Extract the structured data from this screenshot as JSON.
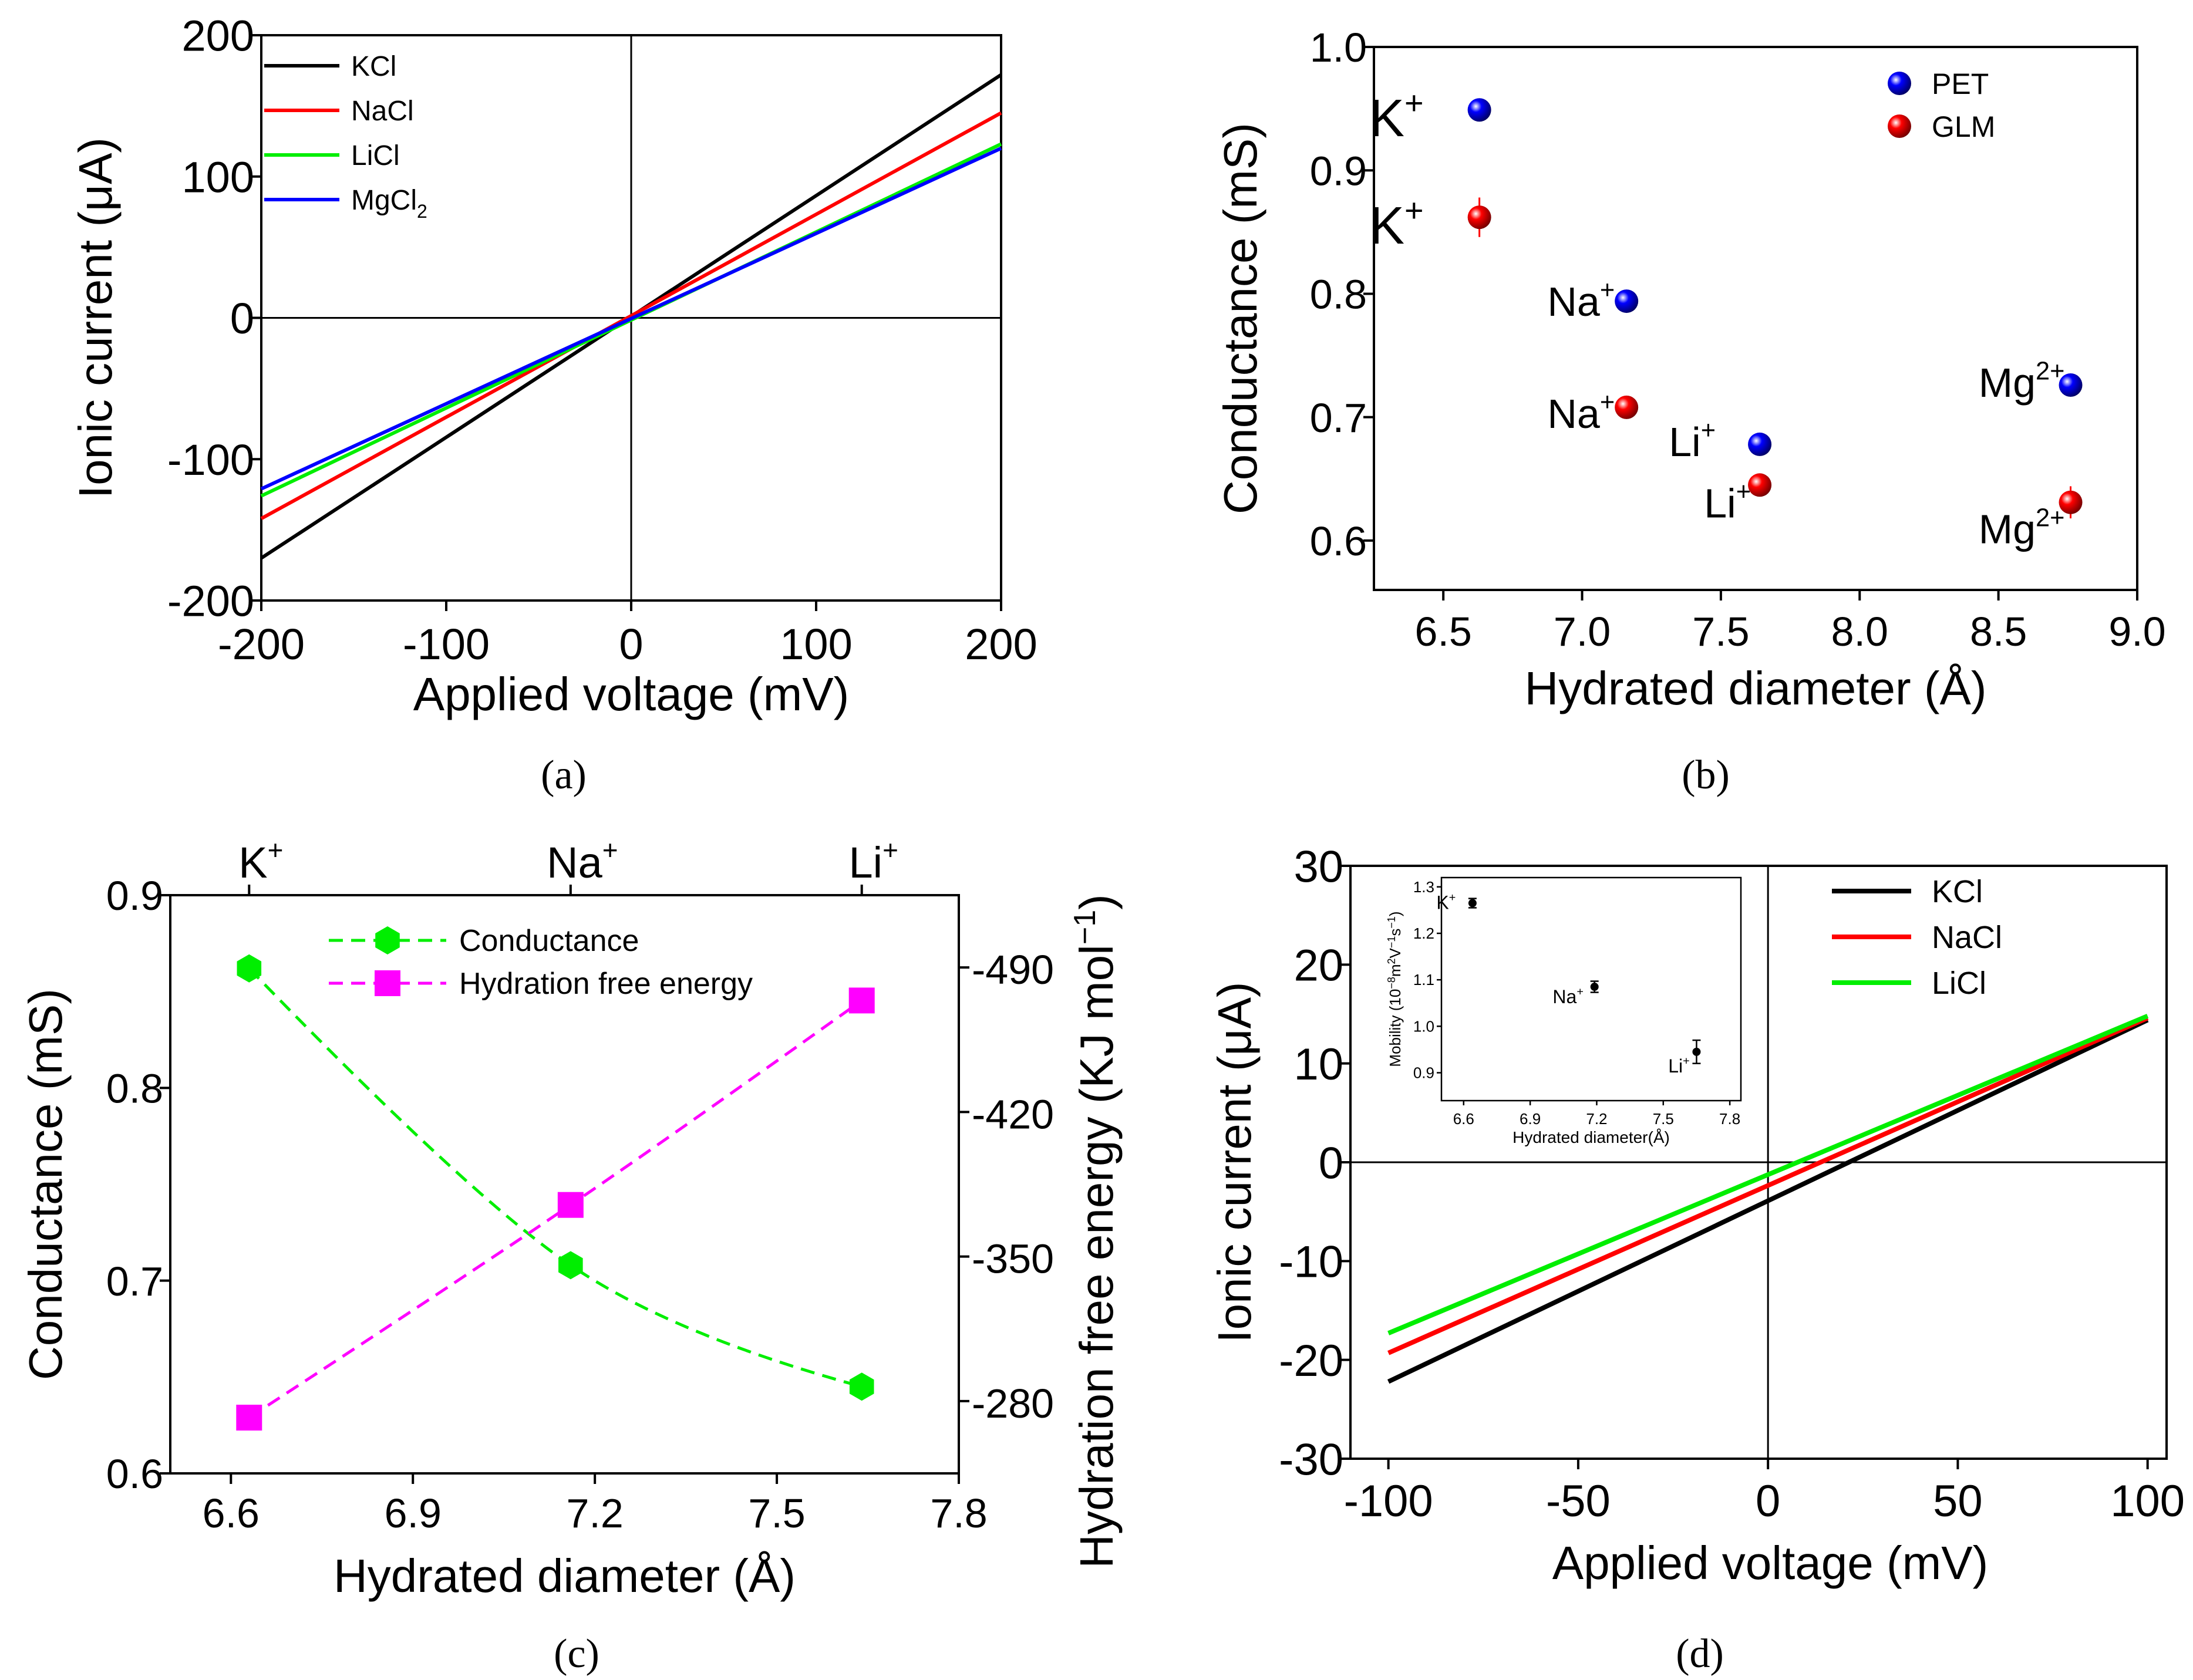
{
  "panels": {
    "a": {
      "caption": "(a)"
    },
    "b": {
      "caption": "(b)"
    },
    "c": {
      "caption": "(c)"
    },
    "d": {
      "caption": "(d)"
    }
  },
  "chart_data": [
    {
      "id": "a",
      "type": "line",
      "xlabel": "Applied voltage (mV)",
      "ylabel": "Ionic current (μA)",
      "xlim": [
        -200,
        200
      ],
      "ylim": [
        -200,
        200
      ],
      "xticks": [
        -200,
        -100,
        0,
        100,
        200
      ],
      "yticks": [
        -200,
        -100,
        0,
        100,
        200
      ],
      "zero_lines": true,
      "legend": "top-left",
      "series": [
        {
          "name": "KCl",
          "color": "#000000",
          "x": [
            -200,
            200
          ],
          "y": [
            -170,
            172
          ]
        },
        {
          "name": "NaCl",
          "color": "#ff0000",
          "x": [
            -200,
            200
          ],
          "y": [
            -142,
            145
          ]
        },
        {
          "name": "LiCl",
          "color": "#00ee00",
          "x": [
            -200,
            200
          ],
          "y": [
            -126,
            123
          ]
        },
        {
          "name": "MgCl2",
          "color": "#0000ff",
          "x": [
            -200,
            200
          ],
          "y": [
            -121,
            120
          ]
        }
      ]
    },
    {
      "id": "b",
      "type": "scatter",
      "xlabel": "Hydrated diameter (Å)",
      "ylabel": "Conductance (mS)",
      "xlim": [
        6.25,
        9.0
      ],
      "ylim": [
        0.56,
        1.0
      ],
      "xticks": [
        6.5,
        7.0,
        7.5,
        8.0,
        8.5,
        9.0
      ],
      "yticks": [
        0.6,
        0.7,
        0.8,
        0.9,
        1.0
      ],
      "legend": "top-right",
      "series": [
        {
          "name": "PET",
          "color": "#0000ff",
          "points": [
            {
              "label": "K",
              "sup": "+",
              "x": 6.63,
              "y": 0.949,
              "err": 0.004
            },
            {
              "label": "Na",
              "sup": "+",
              "x": 7.16,
              "y": 0.794,
              "err": 0.008
            },
            {
              "label": "Li",
              "sup": "+",
              "x": 7.64,
              "y": 0.678,
              "err": 0.006
            },
            {
              "label": "Mg",
              "sup": "2+",
              "x": 8.76,
              "y": 0.726,
              "err": 0.006
            }
          ]
        },
        {
          "name": "GLM",
          "color": "#ff0000",
          "points": [
            {
              "label": "K",
              "sup": "+",
              "x": 6.63,
              "y": 0.862,
              "err": 0.016
            },
            {
              "label": "Na",
              "sup": "+",
              "x": 7.16,
              "y": 0.708,
              "err": 0.007
            },
            {
              "label": "Li",
              "sup": "+",
              "x": 7.64,
              "y": 0.645,
              "err": 0.006
            },
            {
              "label": "Mg",
              "sup": "2+",
              "x": 8.76,
              "y": 0.631,
              "err": 0.013
            }
          ]
        }
      ]
    },
    {
      "id": "c",
      "type": "line",
      "xlabel": "Hydrated diameter (Å)",
      "ylabel": "Conductance (mS)",
      "y2label": "Hydration free energy (KJ mol",
      "y2label_sup": "−1",
      "y2label_end": ")",
      "xlim": [
        6.5,
        7.8
      ],
      "ylim": [
        0.6,
        0.9
      ],
      "y2lim": [
        -245,
        -525
      ],
      "xticks": [
        6.6,
        6.9,
        7.2,
        7.5,
        7.8
      ],
      "yticks": [
        0.6,
        0.7,
        0.8,
        0.9
      ],
      "y2ticks": [
        -280,
        -350,
        -420,
        -490
      ],
      "top_ticks": [
        {
          "label": "K",
          "sup": "+",
          "x": 6.63
        },
        {
          "label": "Na",
          "sup": "+",
          "x": 7.16
        },
        {
          "label": "Li",
          "sup": "+",
          "x": 7.64
        }
      ],
      "legend": "top-center",
      "series": [
        {
          "name": "Conductance",
          "color": "#00ee00",
          "axis": "left",
          "marker": "hexagon",
          "x": [
            6.63,
            7.16,
            7.64
          ],
          "y": [
            0.862,
            0.708,
            0.645
          ]
        },
        {
          "name": "Hydration free energy",
          "color": "#ff00ff",
          "axis": "right",
          "marker": "square",
          "x": [
            6.63,
            7.16,
            7.64
          ],
          "y": [
            -272,
            -375,
            -474
          ]
        }
      ]
    },
    {
      "id": "d",
      "type": "line",
      "xlabel": "Applied voltage (mV)",
      "ylabel": "Ionic current (μA)",
      "xlim": [
        -110,
        105
      ],
      "ylim": [
        -30,
        30
      ],
      "xticks": [
        -100,
        -50,
        0,
        50,
        100
      ],
      "yticks": [
        -30,
        -20,
        -10,
        0,
        10,
        20,
        30
      ],
      "zero_lines": true,
      "legend": "top-right",
      "series": [
        {
          "name": "KCl",
          "color": "#000000",
          "x": [
            -100,
            100
          ],
          "y": [
            -22.2,
            14.4
          ]
        },
        {
          "name": "NaCl",
          "color": "#ff0000",
          "x": [
            -100,
            100
          ],
          "y": [
            -19.3,
            14.6
          ]
        },
        {
          "name": "LiCl",
          "color": "#00ee00",
          "x": [
            -100,
            100
          ],
          "y": [
            -17.3,
            14.8
          ]
        }
      ],
      "inset": {
        "type": "scatter",
        "xlabel": "Hydrated diameter(Å)",
        "ylabel": "Mobility (10",
        "ylabel_sup1": "−8",
        "ylabel_mid1": "m",
        "ylabel_sup2": "2",
        "ylabel_mid2": "V",
        "ylabel_sup3": "−1",
        "ylabel_mid3": "s",
        "ylabel_sup4": "−1",
        "ylabel_end": ")",
        "xlim": [
          6.5,
          7.85
        ],
        "ylim": [
          0.84,
          1.32
        ],
        "xticks": [
          6.6,
          6.9,
          7.2,
          7.5,
          7.8
        ],
        "yticks": [
          0.9,
          1.0,
          1.1,
          1.2,
          1.3
        ],
        "points": [
          {
            "label": "K",
            "sup": "+",
            "x": 6.64,
            "y": 1.265,
            "err": 0.01
          },
          {
            "label": "Na",
            "sup": "+",
            "x": 7.19,
            "y": 1.085,
            "err": 0.012
          },
          {
            "label": "Li",
            "sup": "+",
            "x": 7.65,
            "y": 0.945,
            "err": 0.025
          }
        ]
      }
    }
  ]
}
